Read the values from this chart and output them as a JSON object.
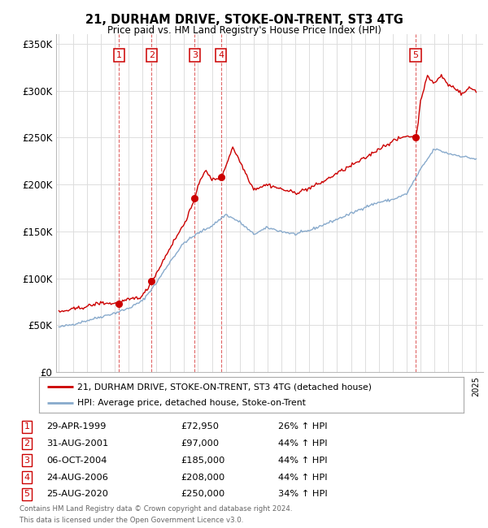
{
  "title": "21, DURHAM DRIVE, STOKE-ON-TRENT, ST3 4TG",
  "subtitle": "Price paid vs. HM Land Registry's House Price Index (HPI)",
  "xlim": [
    1994.8,
    2025.5
  ],
  "ylim": [
    0,
    360000
  ],
  "yticks": [
    0,
    50000,
    100000,
    150000,
    200000,
    250000,
    300000,
    350000
  ],
  "ytick_labels": [
    "£0",
    "£50K",
    "£100K",
    "£150K",
    "£200K",
    "£250K",
    "£300K",
    "£350K"
  ],
  "sale_dates": [
    1999.33,
    2001.66,
    2004.77,
    2006.65,
    2020.65
  ],
  "sale_prices": [
    72950,
    97000,
    185000,
    208000,
    250000
  ],
  "sale_labels": [
    "1",
    "2",
    "3",
    "4",
    "5"
  ],
  "sale_info": [
    {
      "label": "1",
      "date": "29-APR-1999",
      "price": "£72,950",
      "hpi": "26% ↑ HPI"
    },
    {
      "label": "2",
      "date": "31-AUG-2001",
      "price": "£97,000",
      "hpi": "44% ↑ HPI"
    },
    {
      "label": "3",
      "date": "06-OCT-2004",
      "price": "£185,000",
      "hpi": "44% ↑ HPI"
    },
    {
      "label": "4",
      "date": "24-AUG-2006",
      "price": "£208,000",
      "hpi": "44% ↑ HPI"
    },
    {
      "label": "5",
      "date": "25-AUG-2020",
      "price": "£250,000",
      "hpi": "34% ↑ HPI"
    }
  ],
  "legend_line1": "21, DURHAM DRIVE, STOKE-ON-TRENT, ST3 4TG (detached house)",
  "legend_line2": "HPI: Average price, detached house, Stoke-on-Trent",
  "footnote1": "Contains HM Land Registry data © Crown copyright and database right 2024.",
  "footnote2": "This data is licensed under the Open Government Licence v3.0.",
  "red_color": "#cc0000",
  "blue_color": "#88aacc",
  "grid_color": "#dddddd",
  "background_color": "#ffffff",
  "hpi_base": {
    "1995.0": 48000,
    "1996.0": 51000,
    "1997.0": 55000,
    "1998.0": 59000,
    "1999.0": 63000,
    "2000.0": 68000,
    "2001.0": 76000,
    "2002.0": 95000,
    "2003.0": 118000,
    "2004.0": 138000,
    "2005.0": 148000,
    "2006.0": 156000,
    "2007.0": 168000,
    "2008.0": 160000,
    "2009.0": 147000,
    "2010.0": 154000,
    "2011.0": 150000,
    "2012.0": 147000,
    "2013.0": 151000,
    "2014.0": 157000,
    "2015.0": 163000,
    "2016.0": 169000,
    "2017.0": 176000,
    "2018.0": 181000,
    "2019.0": 184000,
    "2020.0": 190000,
    "2021.0": 216000,
    "2022.0": 238000,
    "2023.0": 233000,
    "2024.0": 230000,
    "2025.0": 227000
  },
  "price_base": {
    "1995.0": 64000,
    "1996.0": 67000,
    "1997.0": 70000,
    "1998.0": 74000,
    "1999.0": 73000,
    "2000.0": 77000,
    "2001.0": 81000,
    "2001.7": 97000,
    "2002.0": 105000,
    "2003.0": 133000,
    "2004.0": 158000,
    "2004.8": 185000,
    "2005.0": 200000,
    "2005.5": 215000,
    "2006.0": 205000,
    "2006.7": 208000,
    "2007.0": 220000,
    "2007.5": 240000,
    "2008.0": 225000,
    "2009.0": 195000,
    "2010.0": 200000,
    "2011.0": 195000,
    "2012.0": 191000,
    "2013.0": 196000,
    "2014.0": 203000,
    "2015.0": 212000,
    "2016.0": 220000,
    "2017.0": 228000,
    "2018.0": 238000,
    "2019.0": 246000,
    "2020.0": 252000,
    "2020.7": 250000,
    "2021.0": 290000,
    "2021.5": 315000,
    "2022.0": 308000,
    "2022.5": 316000,
    "2023.0": 306000,
    "2023.5": 303000,
    "2024.0": 296000,
    "2024.5": 303000,
    "2025.0": 300000
  }
}
